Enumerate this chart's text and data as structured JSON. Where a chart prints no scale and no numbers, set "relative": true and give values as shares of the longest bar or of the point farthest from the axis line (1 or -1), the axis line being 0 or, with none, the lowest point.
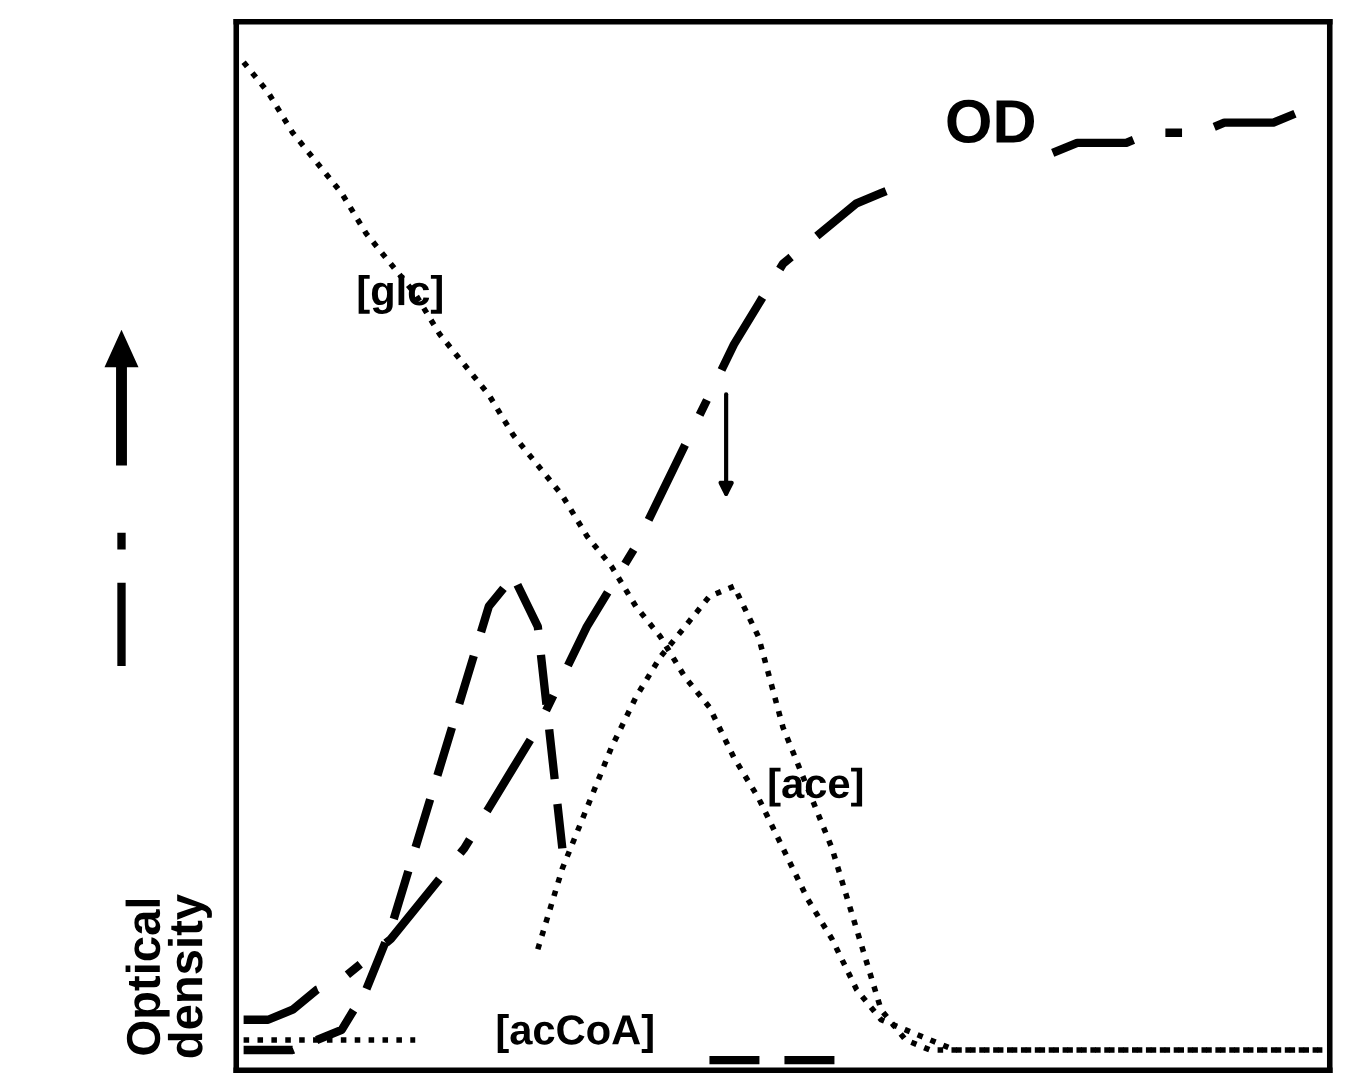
{
  "chart_data": {
    "type": "line",
    "relative": true,
    "ylabel": "Optical\ndensity",
    "marker": "none",
    "categories": [
      null,
      null,
      null,
      null,
      null,
      null,
      null,
      null,
      null,
      null,
      null,
      null,
      null,
      null,
      null,
      null,
      null,
      null,
      null,
      null,
      null,
      null,
      null,
      null,
      null,
      null,
      null,
      null,
      null,
      null,
      null,
      null,
      null,
      null,
      null,
      null,
      null,
      null,
      null,
      null,
      null,
      null,
      null,
      null,
      null
    ],
    "series": [
      {
        "name": "[glc]",
        "color": "#000000",
        "line_style": "dotted",
        "values": [
          1.0,
          0.97,
          0.93,
          0.9,
          0.87,
          0.83,
          0.8,
          0.77,
          0.73,
          0.7,
          0.67,
          0.63,
          0.6,
          0.57,
          0.53,
          0.5,
          0.46,
          0.43,
          0.39,
          0.36,
          0.31,
          0.27,
          0.22,
          0.17,
          0.13,
          0.08,
          0.05,
          0.04,
          0.03,
          0.02,
          0.02,
          0.02,
          0.02,
          0.02,
          0.02,
          0.02,
          0.02,
          0.02,
          0.02,
          0.02,
          0.02,
          0.02,
          0.02,
          0.02,
          0.02
        ]
      },
      {
        "name": "OD",
        "color": "#000000",
        "line_style": "dashdot",
        "values": [
          0.05,
          0.05,
          0.06,
          0.08,
          0.09,
          0.11,
          0.13,
          0.16,
          0.19,
          0.22,
          0.26,
          0.3,
          0.34,
          0.39,
          0.44,
          0.48,
          0.52,
          0.57,
          0.62,
          0.67,
          0.72,
          0.76,
          0.8,
          0.82,
          0.84,
          0.86,
          0.87,
          0.88,
          null,
          null,
          null,
          null,
          null,
          0.91,
          0.92,
          0.92,
          0.92,
          0.93,
          0.93,
          0.93,
          0.94,
          0.94,
          0.94,
          0.95,
          0.95
        ]
      },
      {
        "name": "[acCoA]",
        "color": "#000000",
        "line_style": "dashed",
        "values": [
          0.02,
          0.02,
          0.02,
          0.03,
          0.04,
          0.08,
          0.14,
          0.22,
          0.3,
          0.38,
          0.46,
          0.49,
          0.44,
          0.22,
          null,
          null,
          null,
          null,
          null,
          0.01,
          0.01,
          0.01,
          0.01,
          0.01,
          0.01,
          0.01,
          null,
          null,
          null,
          null,
          null,
          null,
          null,
          null,
          null,
          null,
          null,
          null,
          null,
          null,
          null,
          null,
          null,
          null,
          null
        ]
      },
      {
        "name": "[ace]",
        "color": "#000000",
        "line_style": "dotted",
        "values": [
          0.03,
          0.03,
          0.03,
          0.03,
          0.03,
          0.03,
          0.03,
          0.03,
          null,
          null,
          null,
          null,
          0.12,
          0.2,
          0.26,
          0.32,
          0.37,
          0.41,
          0.44,
          0.47,
          0.48,
          0.43,
          0.34,
          0.28,
          0.22,
          0.14,
          0.06,
          0.03,
          0.02,
          0.02,
          0.02,
          0.02,
          0.02,
          0.02,
          0.02,
          0.02,
          0.02,
          0.02,
          0.02,
          0.02,
          0.02,
          0.02,
          0.02,
          0.02,
          0.02
        ]
      }
    ]
  }
}
